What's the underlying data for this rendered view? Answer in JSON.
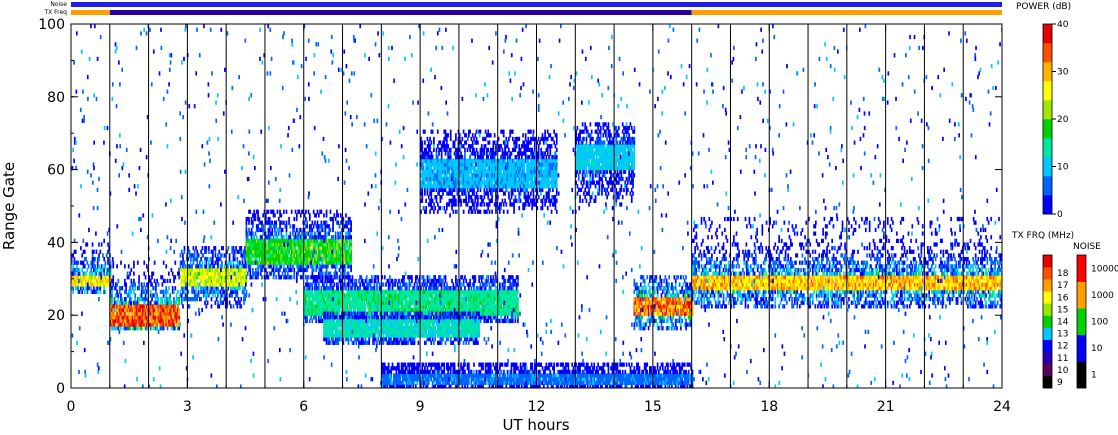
{
  "chart_data": {
    "type": "heatmap",
    "xlabel": "UT hours",
    "ylabel": "Range Gate",
    "xlim": [
      0,
      24
    ],
    "ylim": [
      0,
      100
    ],
    "x_ticks": [
      "0",
      "3",
      "6",
      "9",
      "12",
      "15",
      "18",
      "21",
      "24"
    ],
    "y_ticks": [
      "0",
      "20",
      "40",
      "60",
      "80",
      "100"
    ],
    "scan_boundaries_hours": [
      1,
      2,
      3,
      4,
      5,
      6,
      7,
      8,
      9,
      10,
      11,
      12,
      13,
      14,
      15,
      16,
      17,
      18,
      19,
      20,
      21,
      22,
      23
    ],
    "status_bars": {
      "noise_label": "Noise",
      "txfreq_label": "TX Freq",
      "noise_color": "#1e1ee6",
      "txfreq_segments": [
        {
          "start": 0,
          "end": 1,
          "color": "#ffa000"
        },
        {
          "start": 1,
          "end": 16,
          "color": "#28009a"
        },
        {
          "start": 16,
          "end": 24,
          "color": "#ffa000"
        }
      ]
    },
    "power_colorbar": {
      "title": "POWER (dB)",
      "range": [
        0,
        40
      ],
      "ticks": [
        "0",
        "10",
        "20",
        "30",
        "40"
      ],
      "colors": [
        "#0000ff",
        "#0064ff",
        "#00c8ff",
        "#00e8a0",
        "#00d200",
        "#a0e600",
        "#ffff00",
        "#ffb400",
        "#ff5000",
        "#e60000"
      ]
    },
    "txfreq_colorbar": {
      "title": "TX FRQ (MHz)",
      "ticks": [
        "9",
        "10",
        "11",
        "12",
        "13",
        "14",
        "15",
        "16",
        "17",
        "18"
      ],
      "colors": [
        "#000000",
        "#5a005a",
        "#2800b4",
        "#0000ff",
        "#00c8ff",
        "#00d200",
        "#96e600",
        "#ffff00",
        "#ffa000",
        "#ff5000",
        "#e60000"
      ]
    },
    "noise_colorbar": {
      "title": "NOISE",
      "ticks": [
        "1",
        "10",
        "100",
        "1000",
        "10000"
      ],
      "colors": [
        "#000000",
        "#0000ff",
        "#00d200",
        "#ffa000",
        "#ff0000"
      ]
    },
    "features": [
      {
        "t0": 0,
        "t1": 1,
        "g0": 26,
        "g1": 40,
        "core": [
          28,
          30
        ],
        "peak": 30
      },
      {
        "t0": 1,
        "t1": 2.8,
        "g0": 16,
        "g1": 34,
        "core": [
          17,
          22
        ],
        "peak": 38
      },
      {
        "t0": 2.8,
        "t1": 4.5,
        "g0": 22,
        "g1": 38,
        "core": [
          28,
          32
        ],
        "peak": 26
      },
      {
        "t0": 4.5,
        "t1": 7.2,
        "g0": 30,
        "g1": 48,
        "core": [
          34,
          40
        ],
        "peak": 20
      },
      {
        "t0": 6,
        "t1": 11.5,
        "g0": 18,
        "g1": 30,
        "core": [
          20,
          26
        ],
        "peak": 16
      },
      {
        "t0": 6.5,
        "t1": 10.5,
        "g0": 12,
        "g1": 20,
        "core": [
          14,
          18
        ],
        "peak": 14
      },
      {
        "t0": 9,
        "t1": 12.5,
        "g0": 48,
        "g1": 70,
        "core": [
          55,
          62
        ],
        "peak": 10
      },
      {
        "t0": 13,
        "t1": 14.5,
        "g0": 50,
        "g1": 72,
        "core": [
          60,
          66
        ],
        "peak": 12
      },
      {
        "t0": 14.5,
        "t1": 16,
        "g0": 16,
        "g1": 30,
        "core": [
          20,
          24
        ],
        "peak": 36
      },
      {
        "t0": 16,
        "t1": 24,
        "g0": 22,
        "g1": 46,
        "core": [
          27,
          30
        ],
        "peak": 32
      },
      {
        "t0": 8,
        "t1": 16,
        "g0": 0,
        "g1": 6,
        "core": [
          1,
          3
        ],
        "peak": 8
      }
    ]
  }
}
